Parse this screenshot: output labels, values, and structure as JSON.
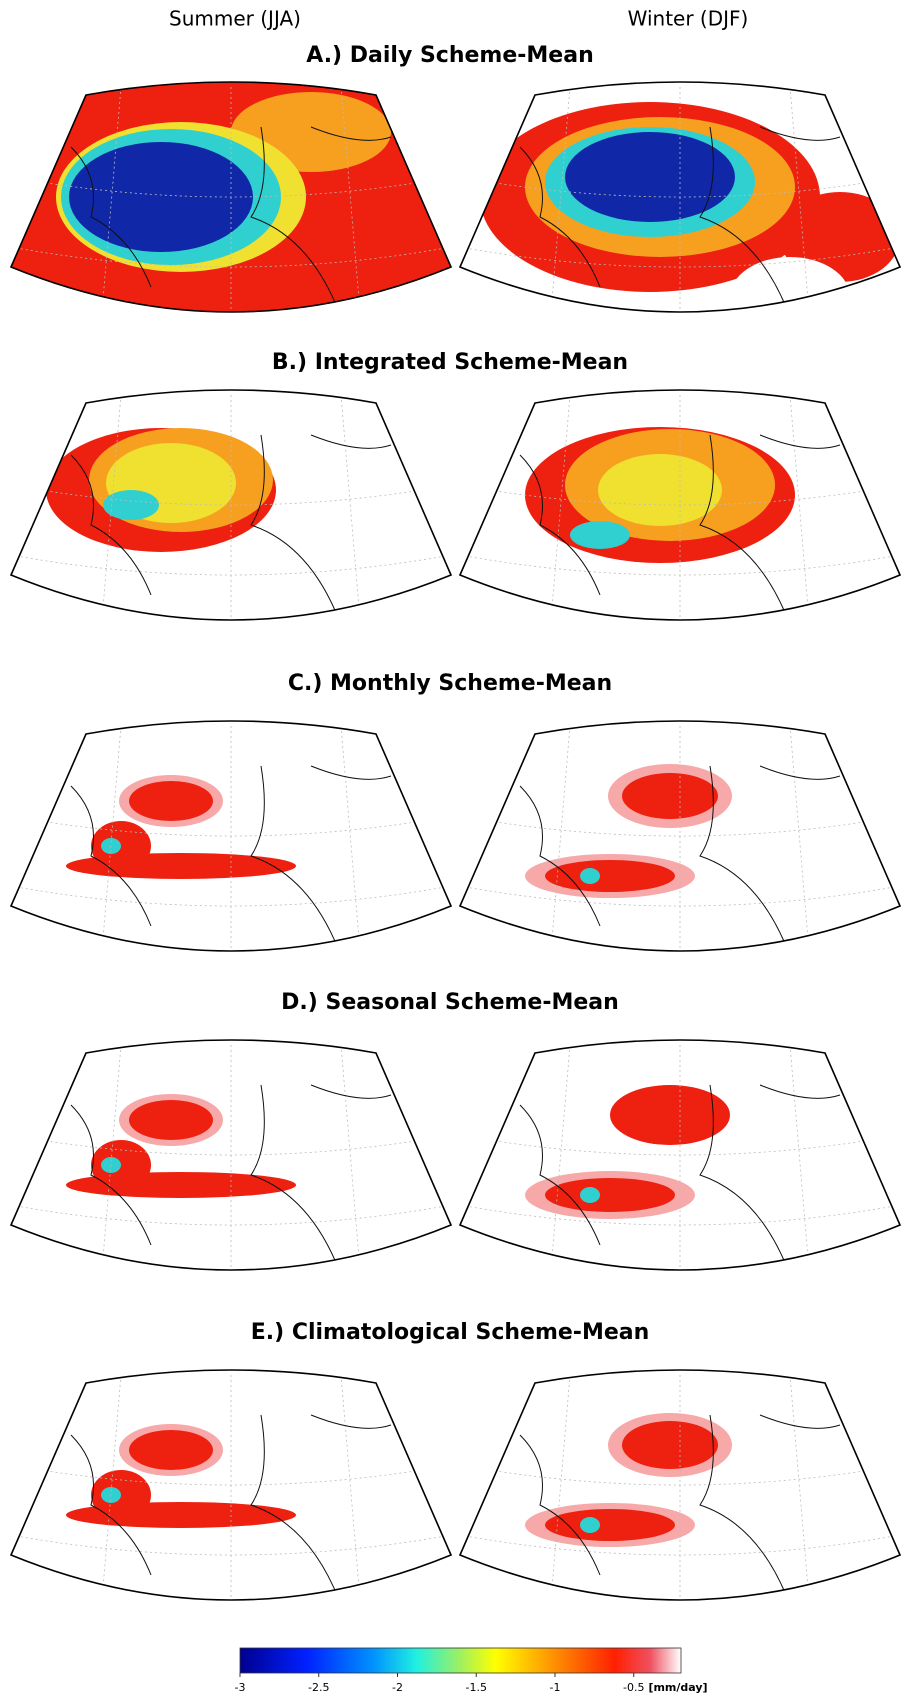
{
  "columns": [
    "Summer (JJA)",
    "Winter (DJF)"
  ],
  "panels": [
    "A.) Daily Scheme-Mean",
    "B.) Integrated Scheme-Mean",
    "C.) Monthly Scheme-Mean",
    "D.) Seasonal Scheme-Mean",
    "E.) Climatological Scheme-Mean"
  ],
  "colorbar": {
    "lim": [
      -3,
      -0.2
    ],
    "ticks": [
      -3,
      -2.5,
      -2,
      -1.5,
      -1,
      -0.5
    ],
    "unit": "[mm/day]"
  }
}
